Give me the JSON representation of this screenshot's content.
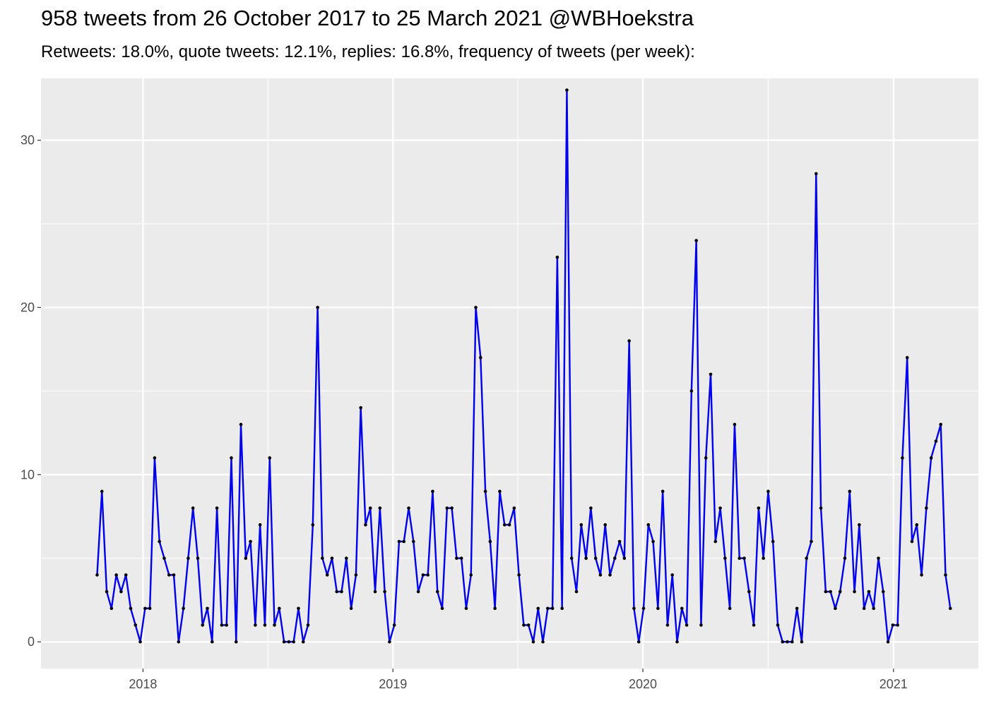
{
  "chart_data": {
    "type": "line",
    "title": "958 tweets from 26 October 2017 to 25 March 2021 @WBHoekstra",
    "subtitle": "Retweets: 18.0%, quote tweets: 12.1%, replies: 16.8%, frequency of tweets (per week):",
    "xlabel": "",
    "ylabel": "",
    "x_start": "2017-10-26",
    "x_step_days": 7,
    "xlim": [
      "2017-08-05",
      "2021-05-05"
    ],
    "ylim": [
      -1.6,
      33.7
    ],
    "x_ticks": [
      {
        "label": "2018",
        "date": "2018-01-01"
      },
      {
        "label": "2019",
        "date": "2019-01-01"
      },
      {
        "label": "2020",
        "date": "2020-01-01"
      },
      {
        "label": "2021",
        "date": "2021-01-01"
      }
    ],
    "y_ticks": [
      0,
      10,
      20,
      30
    ],
    "y_minor_ticks": [
      5,
      15,
      25
    ],
    "grid": true,
    "legend": "none",
    "colors": {
      "line": "#0000ee",
      "point": "#000000",
      "panel": "#ebebeb",
      "grid": "#ffffff"
    },
    "values": [
      4,
      9,
      3,
      2,
      4,
      3,
      4,
      2,
      1,
      0,
      2,
      2,
      11,
      6,
      5,
      4,
      4,
      0,
      2,
      5,
      8,
      5,
      1,
      2,
      0,
      8,
      1,
      1,
      11,
      0,
      13,
      5,
      6,
      1,
      7,
      1,
      11,
      1,
      2,
      0,
      0,
      0,
      2,
      0,
      1,
      7,
      20,
      5,
      4,
      5,
      3,
      3,
      5,
      2,
      4,
      14,
      7,
      8,
      3,
      8,
      3,
      0,
      1,
      6,
      6,
      8,
      6,
      3,
      4,
      4,
      9,
      3,
      2,
      8,
      8,
      5,
      5,
      2,
      4,
      20,
      17,
      9,
      6,
      2,
      9,
      7,
      7,
      8,
      4,
      1,
      1,
      0,
      2,
      0,
      2,
      2,
      23,
      2,
      33,
      5,
      3,
      7,
      5,
      8,
      5,
      4,
      7,
      4,
      5,
      6,
      5,
      18,
      2,
      0,
      2,
      7,
      6,
      2,
      9,
      1,
      4,
      0,
      2,
      1,
      15,
      24,
      1,
      11,
      16,
      6,
      8,
      5,
      2,
      13,
      5,
      5,
      3,
      1,
      8,
      5,
      9,
      6,
      1,
      0,
      0,
      0,
      2,
      0,
      5,
      6,
      28,
      8,
      3,
      3,
      2,
      3,
      5,
      9,
      3,
      7,
      2,
      3,
      2,
      5,
      3,
      0,
      1,
      1,
      11,
      17,
      6,
      7,
      4,
      8,
      11,
      12,
      13,
      4,
      2
    ]
  }
}
